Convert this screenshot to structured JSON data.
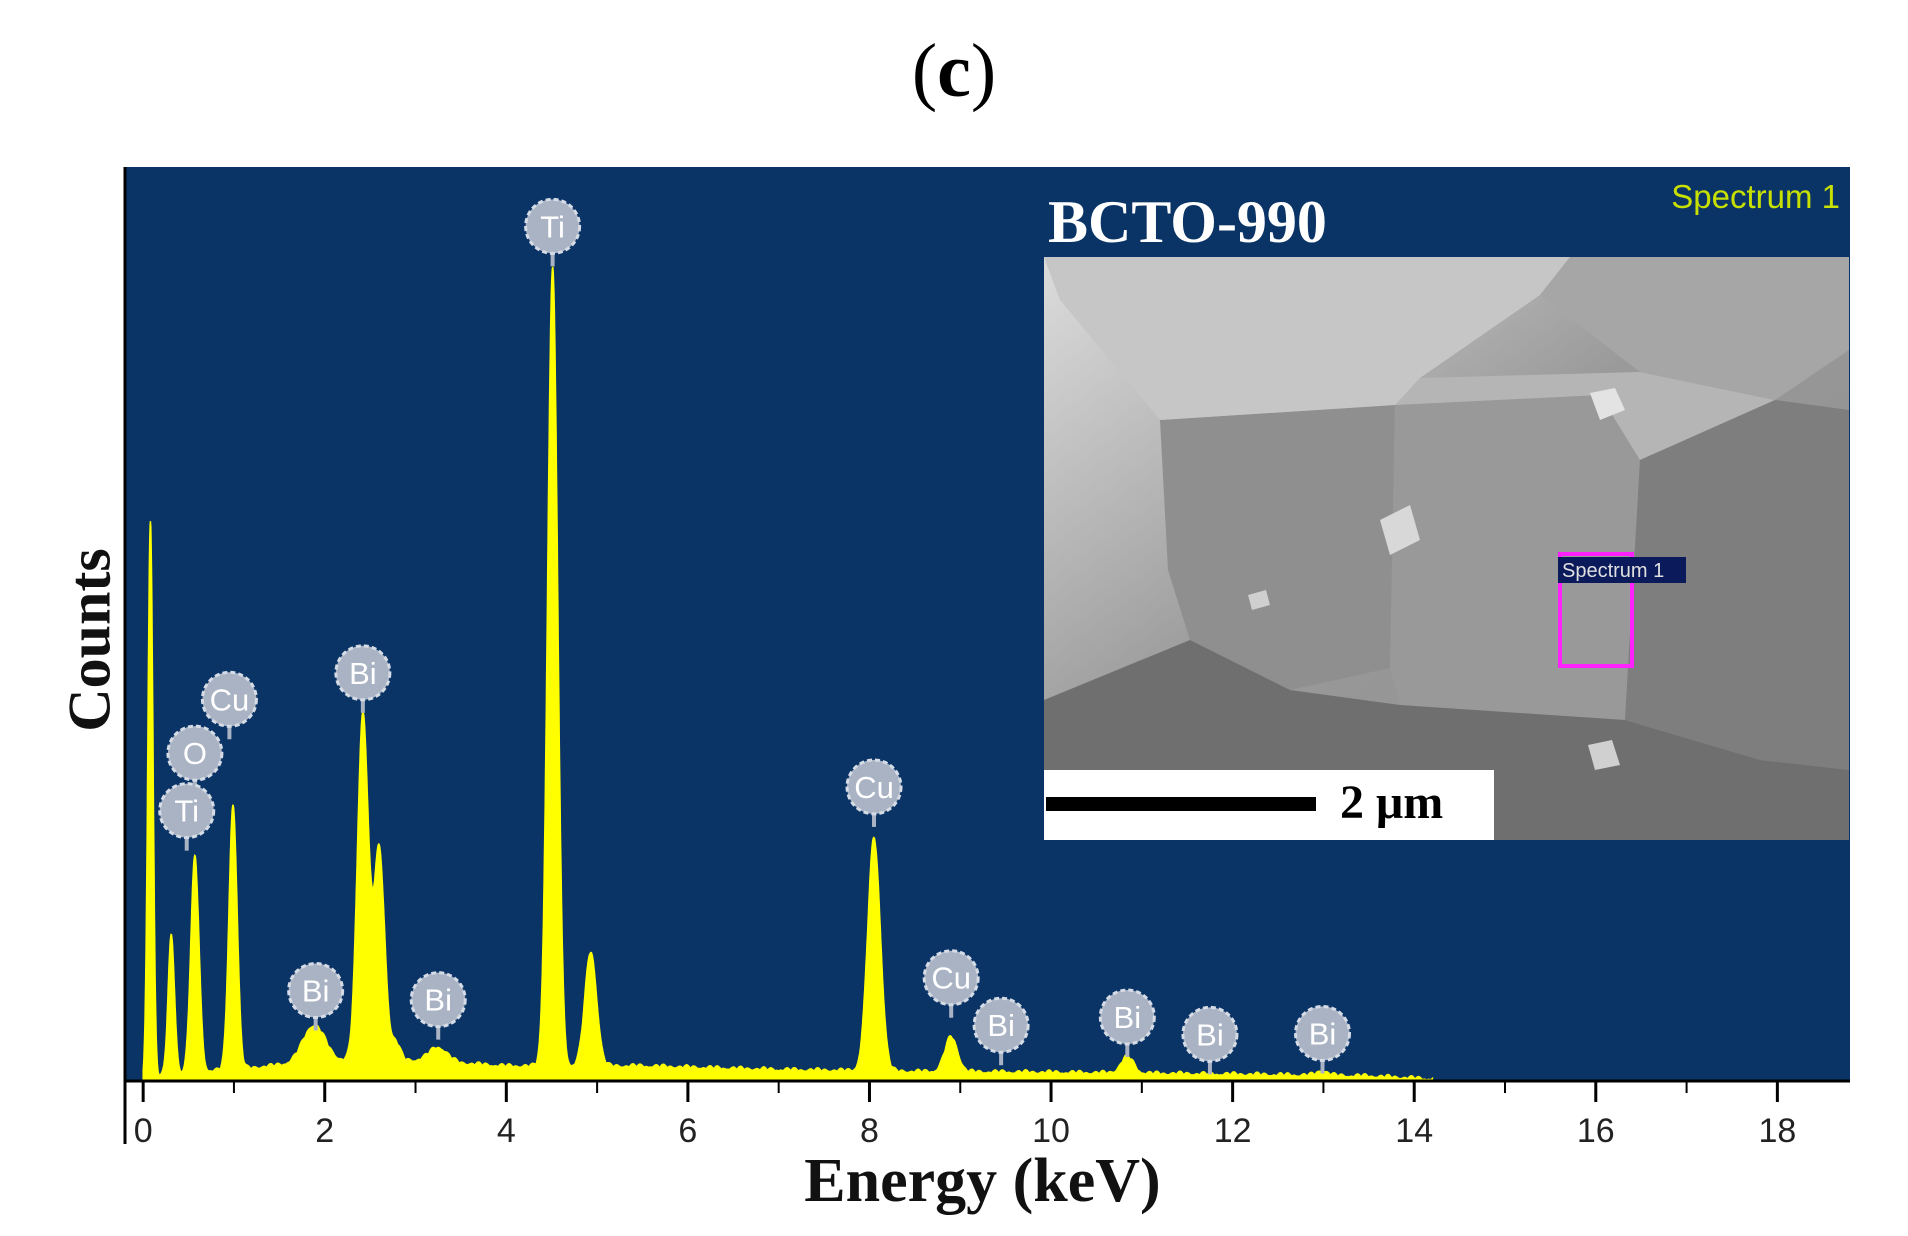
{
  "panel_label": "c",
  "colors": {
    "plot_background": "#0a3366",
    "spectrum_fill": "#ffff00",
    "marker_fill": "#a9b3c4",
    "inset_title": "#ffffff",
    "spectrum_label": "#c8e000",
    "roi_box": "#ff22ff"
  },
  "inset": {
    "title": "BCTO-990",
    "spectrum_tag": "Spectrum 1",
    "roi_label": "Spectrum 1",
    "scale_bar_label": "2 μm"
  },
  "chart_data": {
    "type": "area",
    "xlabel": "Energy (keV)",
    "ylabel": "Counts",
    "xlim": [
      -0.2,
      18.8
    ],
    "ylim": [
      0,
      1000
    ],
    "xticks": [
      0,
      2,
      4,
      6,
      8,
      10,
      12,
      14,
      16,
      18
    ],
    "grid": false,
    "peaks": [
      {
        "x": 0.08,
        "y": 610,
        "w": 0.028
      },
      {
        "x": 0.31,
        "y": 150,
        "w": 0.035
      },
      {
        "x": 0.57,
        "y": 235,
        "w": 0.045
      },
      {
        "x": 0.99,
        "y": 290,
        "w": 0.045
      },
      {
        "x": 1.88,
        "y": 40,
        "w": 0.12
      },
      {
        "x": 2.42,
        "y": 380,
        "w": 0.06
      },
      {
        "x": 2.6,
        "y": 230,
        "w": 0.06
      },
      {
        "x": 2.78,
        "y": 20,
        "w": 0.05
      },
      {
        "x": 3.25,
        "y": 16,
        "w": 0.1
      },
      {
        "x": 4.51,
        "y": 875,
        "w": 0.055
      },
      {
        "x": 4.93,
        "y": 125,
        "w": 0.065
      },
      {
        "x": 8.05,
        "y": 255,
        "w": 0.07
      },
      {
        "x": 8.9,
        "y": 38,
        "w": 0.07
      },
      {
        "x": 10.84,
        "y": 18,
        "w": 0.07
      },
      {
        "x": 12.99,
        "y": 5,
        "w": 0.06
      }
    ],
    "background": [
      [
        0.0,
        0
      ],
      [
        0.3,
        6
      ],
      [
        1.2,
        12
      ],
      [
        2.0,
        20
      ],
      [
        3.0,
        20
      ],
      [
        4.0,
        14
      ],
      [
        5.5,
        14
      ],
      [
        7.0,
        10
      ],
      [
        8.5,
        8
      ],
      [
        10.0,
        7
      ],
      [
        12.0,
        5
      ],
      [
        13.5,
        3
      ],
      [
        14.15,
        0
      ]
    ],
    "annotations": [
      {
        "label": "Ti",
        "x": 4.51,
        "y": 935
      },
      {
        "label": "Cu",
        "x": 0.95,
        "y": 417
      },
      {
        "label": "O",
        "x": 0.57,
        "y": 358
      },
      {
        "label": "Ti",
        "x": 0.48,
        "y": 295
      },
      {
        "label": "Bi",
        "x": 2.42,
        "y": 446
      },
      {
        "label": "Bi",
        "x": 1.9,
        "y": 98
      },
      {
        "label": "Bi",
        "x": 3.25,
        "y": 88
      },
      {
        "label": "Cu",
        "x": 8.05,
        "y": 321
      },
      {
        "label": "Cu",
        "x": 8.9,
        "y": 112
      },
      {
        "label": "Bi",
        "x": 9.45,
        "y": 60
      },
      {
        "label": "Bi",
        "x": 10.84,
        "y": 69
      },
      {
        "label": "Bi",
        "x": 11.75,
        "y": 50
      },
      {
        "label": "Bi",
        "x": 12.99,
        "y": 51
      }
    ]
  }
}
